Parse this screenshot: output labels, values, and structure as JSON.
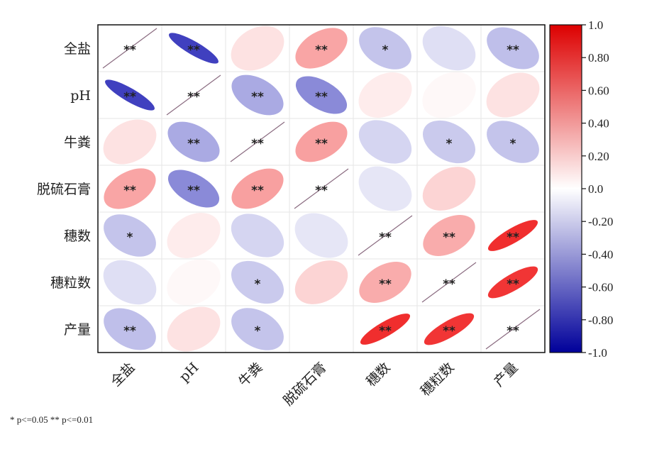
{
  "chart_data": {
    "type": "heatmap",
    "variables": [
      "全盐",
      "pH",
      "牛粪",
      "脱硫石膏",
      "穗数",
      "穗粒数",
      "产量"
    ],
    "matrix": [
      [
        1.0,
        -0.9,
        0.12,
        0.38,
        -0.28,
        -0.15,
        -0.3
      ],
      [
        -0.9,
        1.0,
        -0.4,
        -0.55,
        0.08,
        0.03,
        0.12
      ],
      [
        0.12,
        -0.4,
        1.0,
        0.4,
        -0.2,
        -0.25,
        -0.28
      ],
      [
        0.38,
        -0.55,
        0.4,
        1.0,
        -0.12,
        0.18,
        0.0
      ],
      [
        -0.28,
        0.08,
        -0.2,
        -0.12,
        1.0,
        0.35,
        0.88
      ],
      [
        -0.15,
        0.03,
        -0.25,
        0.18,
        0.35,
        1.0,
        0.85
      ],
      [
        -0.3,
        0.12,
        -0.28,
        0.0,
        0.88,
        0.85,
        1.0
      ]
    ],
    "significance": [
      [
        "**",
        "**",
        "",
        "**",
        "*",
        "",
        "**"
      ],
      [
        "**",
        "**",
        "**",
        "**",
        "",
        "",
        ""
      ],
      [
        "",
        "**",
        "**",
        "**",
        "",
        "*",
        "*"
      ],
      [
        "**",
        "**",
        "**",
        "**",
        "",
        "",
        ""
      ],
      [
        "*",
        "",
        "",
        "",
        "**",
        "**",
        "**"
      ],
      [
        "",
        "",
        "*",
        "",
        "**",
        "**",
        "**"
      ],
      [
        "**",
        "",
        "*",
        "",
        "**",
        "**",
        "**"
      ]
    ],
    "colorbar": {
      "range": [
        -1.0,
        1.0
      ],
      "ticks": [
        "1.0",
        "0.80",
        "0.60",
        "0.40",
        "0.20",
        "0.0",
        "-0.20",
        "-0.40",
        "-0.60",
        "-0.80",
        "-1.0"
      ],
      "colors": {
        "negative": "#2b2bb8",
        "zero": "#ffffff",
        "positive": "#ee1111"
      }
    },
    "footnote": "* p<=0.05  ** p<=0.01"
  }
}
